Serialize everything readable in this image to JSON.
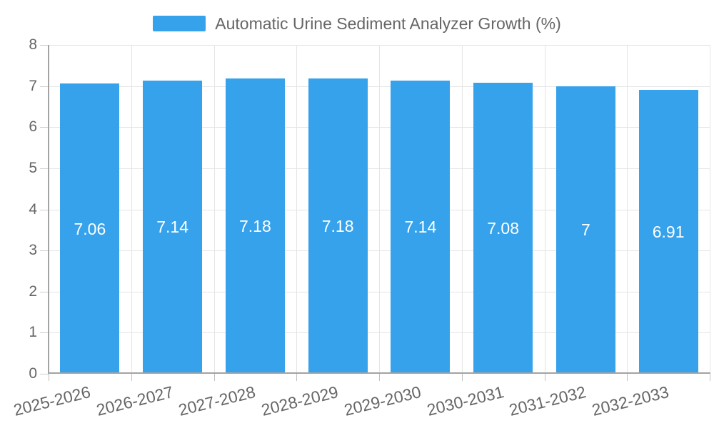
{
  "chart_data": {
    "type": "bar",
    "title": "Automatic Urine Sediment Analyzer Growth (%)",
    "categories": [
      "2025-2026",
      "2026-2027",
      "2027-2028",
      "2028-2029",
      "2029-2030",
      "2030-2031",
      "2031-2032",
      "2032-2033"
    ],
    "values": [
      7.06,
      7.14,
      7.18,
      7.18,
      7.14,
      7.08,
      7,
      6.91
    ],
    "value_labels": [
      "7.06",
      "7.14",
      "7.18",
      "7.18",
      "7.14",
      "7.08",
      "7",
      "6.91"
    ],
    "xlabel": "",
    "ylabel": "",
    "ylim": [
      0,
      8
    ],
    "yticks": [
      0,
      1,
      2,
      3,
      4,
      5,
      6,
      7,
      8
    ],
    "grid": true,
    "legend_position": "top-center",
    "bar_color": "#36a2eb",
    "value_label_color": "#ffffff",
    "axis_text_color": "#666666",
    "grid_color": "#e5e5e5",
    "axis_line_color": "#a3a3a3"
  }
}
